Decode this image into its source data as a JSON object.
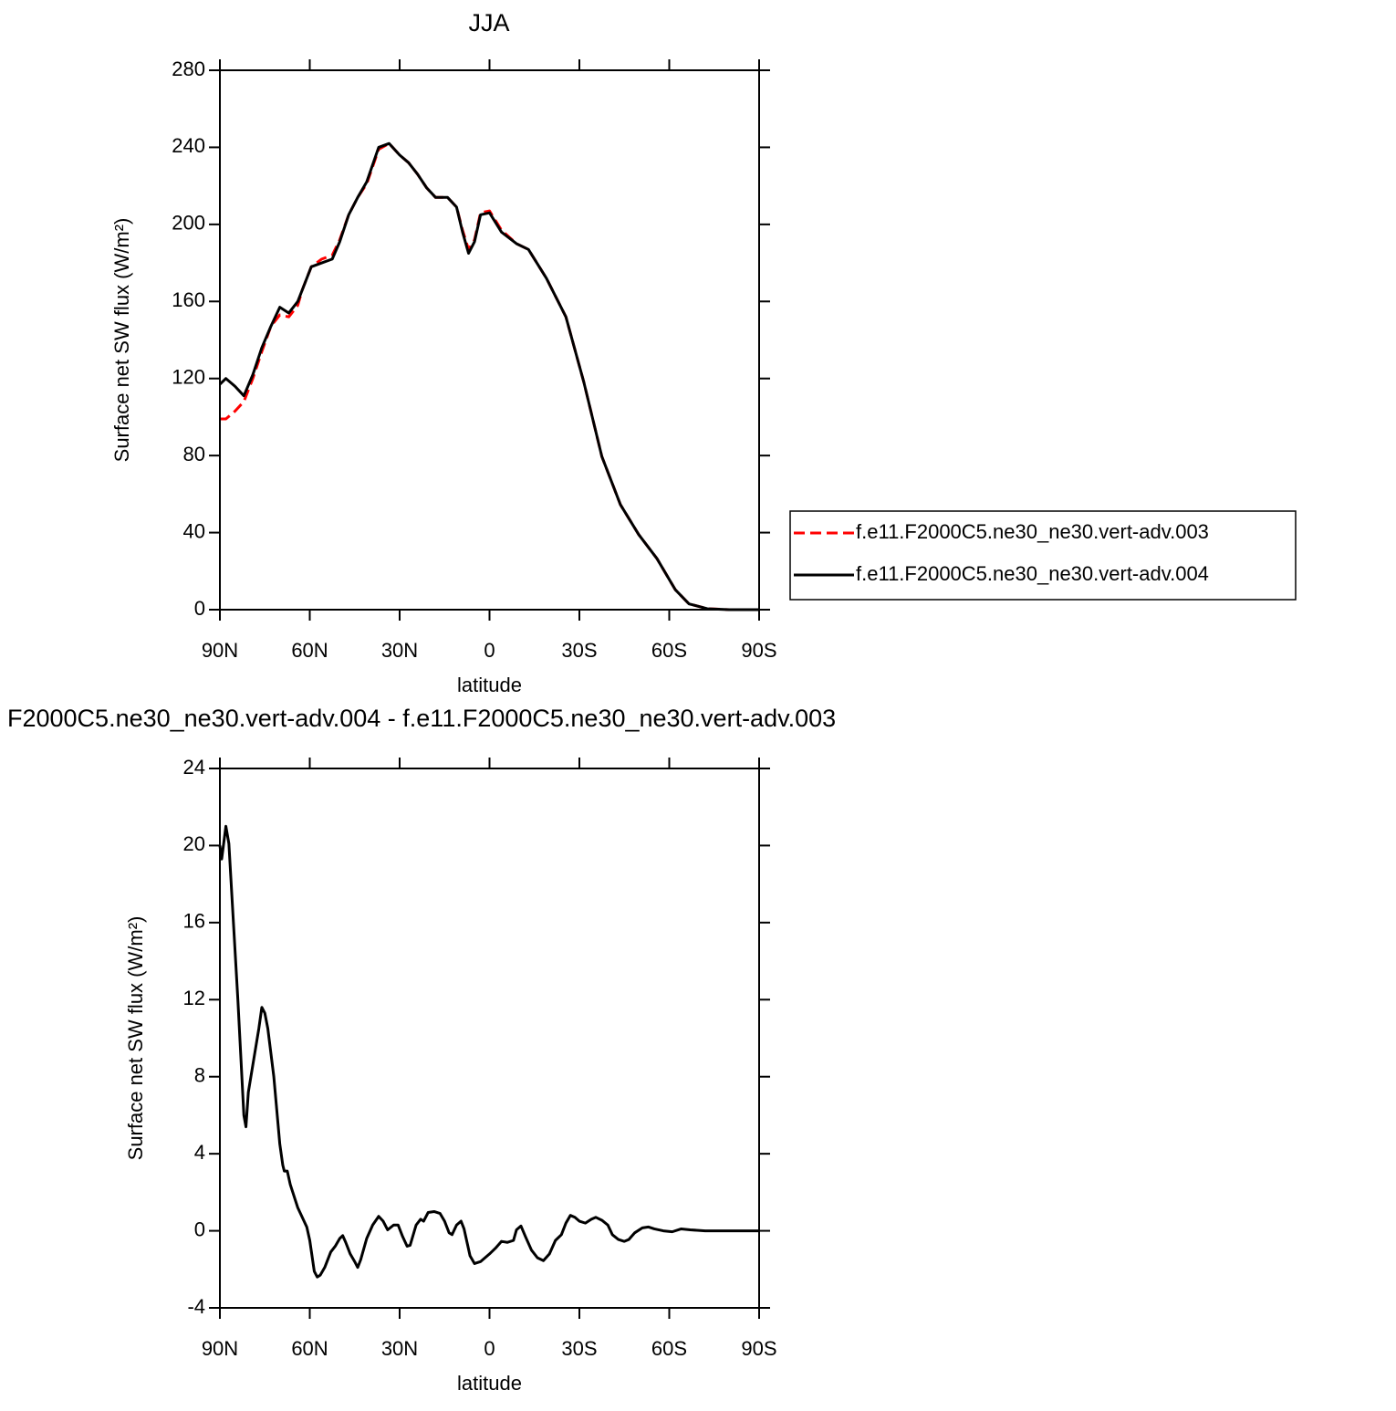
{
  "chart_data": [
    {
      "type": "line",
      "title": "JJA",
      "x_label": "latitude",
      "y_label": "Surface net SW flux (W/m²)",
      "x": [
        90,
        88,
        85,
        82,
        79,
        76,
        73,
        70,
        67,
        64,
        62.5,
        59.5,
        56,
        52.5,
        50,
        47,
        44,
        41,
        37,
        33.5,
        30,
        27,
        24,
        21,
        18,
        14,
        11,
        9,
        7,
        5,
        3,
        0,
        -4,
        -9,
        -13,
        -19,
        -25.5,
        -31.5,
        -37.5,
        -43.7,
        -49.8,
        -55.9,
        -62,
        -66.6,
        -72.7,
        -80,
        -90
      ],
      "series": [
        {
          "name": "f.e11.F2000C5.ne30_ne30.vert-adv.003",
          "color": "#ff0000",
          "dash": true,
          "values": [
            99,
            99,
            103,
            108,
            120,
            134,
            147,
            153,
            152,
            158,
            166,
            178,
            182,
            184,
            192,
            205,
            214,
            221,
            239,
            242,
            236,
            232,
            226,
            219,
            214,
            214,
            209,
            197,
            187,
            192,
            206,
            207,
            197,
            190,
            187,
            172,
            152,
            118,
            79.5,
            54.5,
            39,
            26.5,
            10.4,
            3,
            0.5,
            0,
            0
          ]
        },
        {
          "name": "f.e11.F2000C5.ne30_ne30.vert-adv.004",
          "color": "#000000",
          "dash": false,
          "values": [
            117,
            120,
            116,
            111,
            122,
            136,
            147,
            157,
            154,
            160,
            166,
            178,
            180,
            182,
            191,
            205,
            214,
            222,
            240,
            242,
            236,
            232,
            226,
            219,
            214,
            214,
            209,
            196,
            185,
            191,
            205,
            206,
            196,
            190,
            187,
            172,
            152,
            118,
            79.5,
            54.5,
            39,
            26.5,
            10.4,
            3,
            0.5,
            0,
            0
          ]
        }
      ],
      "xlim": [
        90,
        -90
      ],
      "xticks": [
        {
          "value": 90,
          "label": "90N"
        },
        {
          "value": 60,
          "label": "60N"
        },
        {
          "value": 30,
          "label": "30N"
        },
        0,
        {
          "value": -30,
          "label": "30S"
        },
        {
          "value": -60,
          "label": "60S"
        },
        {
          "value": -90,
          "label": "90S"
        }
      ],
      "ylim": [
        0,
        280
      ],
      "yticks": [
        0,
        40,
        80,
        120,
        160,
        200,
        240,
        280
      ],
      "legend": "right"
    },
    {
      "type": "line",
      "title": "F2000C5.ne30_ne30.vert-adv.004 - f.e11.F2000C5.ne30_ne30.vert-adv.003",
      "x_label": "latitude",
      "y_label": "Surface net SW flux (W/m²)",
      "x": [
        90,
        89.4,
        88,
        87,
        84,
        82,
        81.3,
        80.5,
        77,
        76,
        75,
        74,
        72,
        70,
        69,
        68.5,
        67.5,
        66.5,
        64,
        61,
        60,
        58.5,
        57.5,
        56.5,
        55,
        53,
        51.5,
        50,
        49,
        48,
        46.5,
        45,
        44,
        43,
        41,
        39,
        37,
        35.5,
        34,
        32,
        30.5,
        29,
        27.5,
        26.5,
        24.5,
        23,
        22,
        20.5,
        18.5,
        16.5,
        15,
        13.5,
        12.5,
        11,
        9.5,
        8.5,
        6.5,
        5,
        3,
        0,
        -2,
        -4,
        -6,
        -8,
        -9,
        -10.5,
        -12,
        -14,
        -16,
        -18,
        -20,
        -22,
        -24,
        -25.5,
        -27,
        -28.5,
        -30,
        -32,
        -34,
        -35.5,
        -37.5,
        -39.5,
        -41,
        -43,
        -45,
        -46.5,
        -48.5,
        -51,
        -53,
        -55,
        -58,
        -61,
        -64,
        -67,
        -72,
        -90
      ],
      "series": [
        {
          "color": "#000000",
          "dash": false,
          "values": [
            20.0,
            19.3,
            21.0,
            20.1,
            12,
            6.0,
            5.4,
            7.2,
            10.5,
            11.6,
            11.3,
            10.5,
            8.0,
            4.5,
            3.4,
            3.1,
            3.1,
            2.4,
            1.2,
            0.2,
            -0.5,
            -2.1,
            -2.4,
            -2.3,
            -1.9,
            -1.1,
            -0.8,
            -0.4,
            -0.25,
            -0.6,
            -1.2,
            -1.6,
            -1.9,
            -1.5,
            -0.4,
            0.3,
            0.75,
            0.5,
            0.05,
            0.3,
            0.3,
            -0.3,
            -0.8,
            -0.75,
            0.3,
            0.6,
            0.5,
            0.95,
            1.0,
            0.9,
            0.5,
            -0.1,
            -0.2,
            0.3,
            0.5,
            0.1,
            -1.3,
            -1.7,
            -1.6,
            -1.2,
            -0.9,
            -0.55,
            -0.6,
            -0.5,
            0.05,
            0.25,
            -0.3,
            -1.0,
            -1.4,
            -1.55,
            -1.2,
            -0.5,
            -0.2,
            0.4,
            0.8,
            0.7,
            0.5,
            0.4,
            0.6,
            0.7,
            0.55,
            0.3,
            -0.2,
            -0.45,
            -0.55,
            -0.45,
            -0.1,
            0.15,
            0.2,
            0.1,
            0,
            -0.05,
            0.1,
            0.05,
            0,
            0
          ]
        }
      ],
      "xlim": [
        90,
        -90
      ],
      "xticks": [
        {
          "value": 90,
          "label": "90N"
        },
        {
          "value": 60,
          "label": "60N"
        },
        {
          "value": 30,
          "label": "30N"
        },
        0,
        {
          "value": -30,
          "label": "30S"
        },
        {
          "value": -60,
          "label": "60S"
        },
        {
          "value": -90,
          "label": "90S"
        }
      ],
      "ylim": [
        -4,
        24
      ],
      "yticks": [
        -4,
        0,
        4,
        8,
        12,
        16,
        20,
        24
      ]
    }
  ]
}
